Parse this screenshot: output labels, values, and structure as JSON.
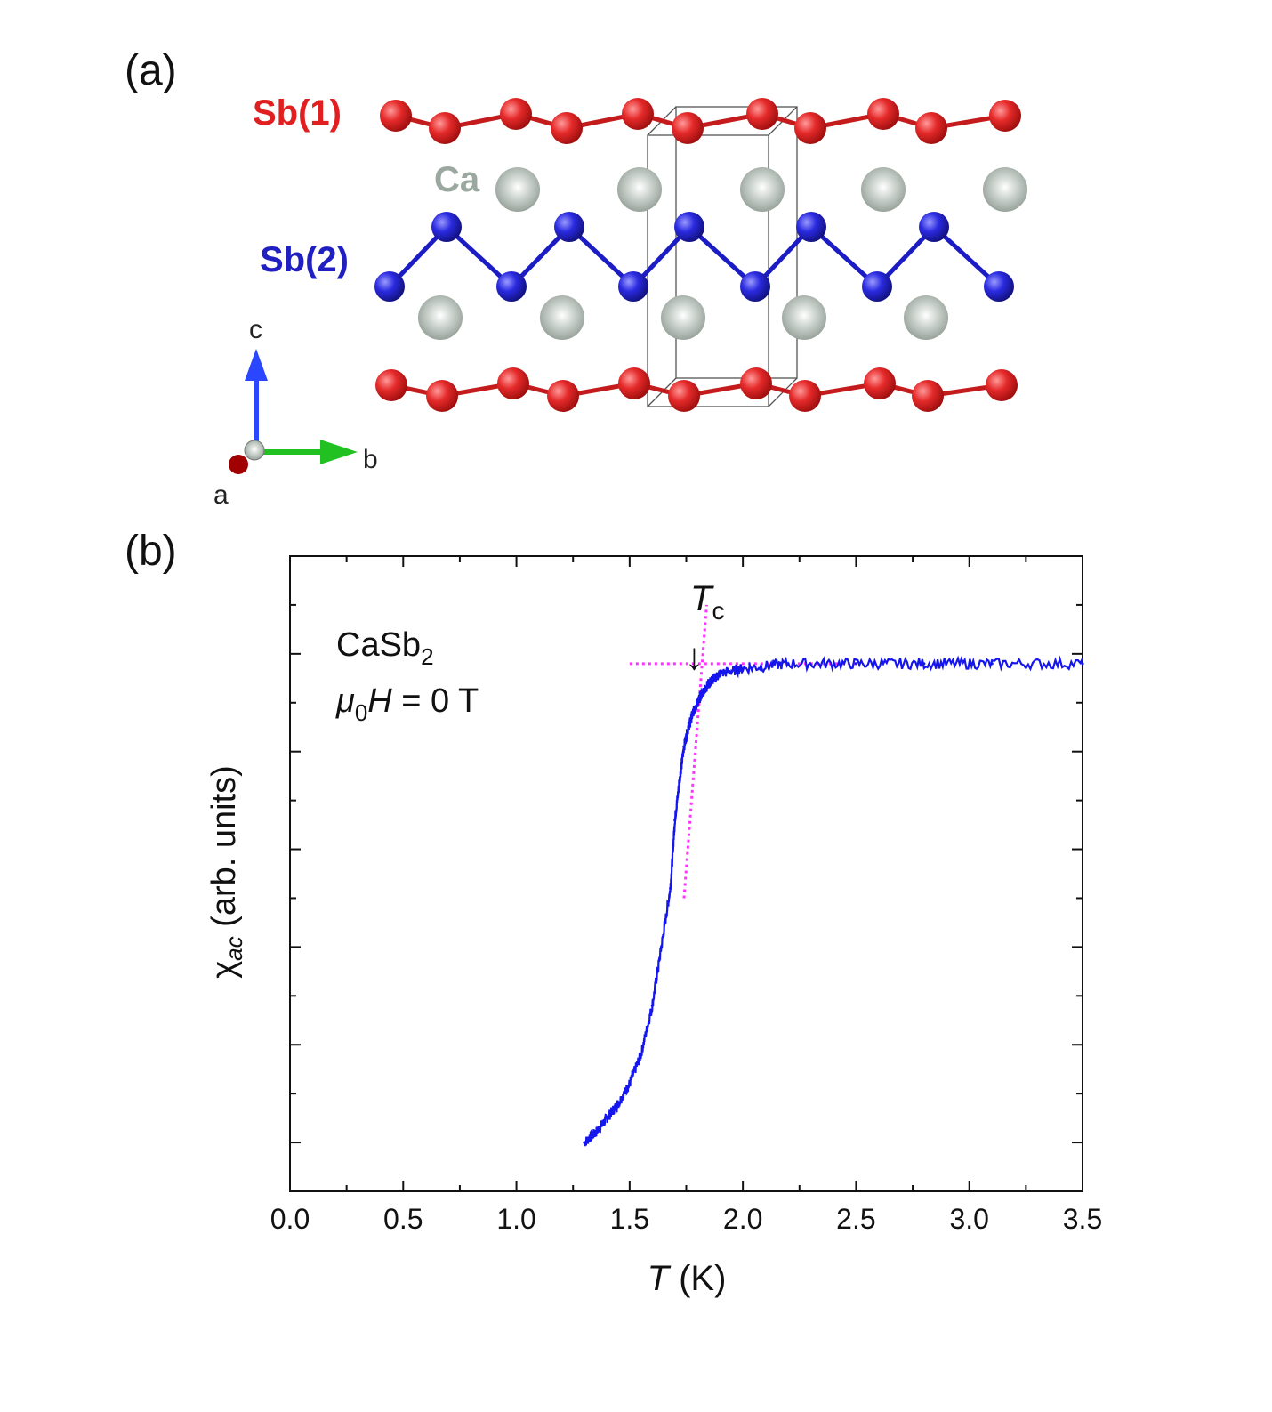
{
  "panel_a": {
    "label": "(a)",
    "atoms": {
      "sb1": {
        "label": "Sb(1)",
        "color": "#e02020"
      },
      "ca": {
        "label": "Ca",
        "color": "#9aa89f"
      },
      "sb2": {
        "label": "Sb(2)",
        "color": "#2020c0"
      }
    },
    "axes": {
      "c": "c",
      "b": "b",
      "a": "a"
    }
  },
  "panel_b": {
    "label": "(b)",
    "annotation": {
      "compound": "CaSb",
      "compound_sub": "2",
      "field_mu": "μ",
      "field_sub": "0",
      "field_rest": "H = 0 T"
    },
    "tc_label": {
      "T": "T",
      "sub": "c"
    },
    "arrow": "↓",
    "xlabel_italic": "T",
    "xlabel_rest": " (K)",
    "ylabel_chi": "χ",
    "ylabel_sub": "ac",
    "ylabel_rest": " (arb. units)"
  },
  "chart_data": {
    "type": "line",
    "title": "",
    "xlabel": "T (K)",
    "ylabel": "χac (arb. units)",
    "xlim": [
      0.0,
      3.5
    ],
    "ylim": [
      0.0,
      1.3
    ],
    "x_ticks": [
      "0.0",
      "0.5",
      "1.0",
      "1.5",
      "2.0",
      "2.5",
      "3.0",
      "3.5"
    ],
    "x_tick_values": [
      0.0,
      0.5,
      1.0,
      1.5,
      2.0,
      2.5,
      3.0,
      3.5
    ],
    "y_tick_count": 6,
    "series": [
      {
        "name": "CaSb2 chi_ac",
        "color": "#1515ee",
        "x": [
          1.3,
          1.35,
          1.4,
          1.45,
          1.5,
          1.55,
          1.6,
          1.64,
          1.68,
          1.7,
          1.72,
          1.74,
          1.76,
          1.78,
          1.8,
          1.82,
          1.85,
          1.9,
          2.0,
          2.2,
          2.5,
          2.8,
          3.1,
          3.5
        ],
        "y": [
          0.1,
          0.12,
          0.15,
          0.18,
          0.22,
          0.28,
          0.38,
          0.5,
          0.62,
          0.76,
          0.84,
          0.91,
          0.95,
          0.98,
          1.0,
          1.02,
          1.04,
          1.06,
          1.07,
          1.08,
          1.08,
          1.08,
          1.08,
          1.08
        ]
      }
    ],
    "guide_lines": {
      "color": "#ff33ff",
      "baseline": {
        "x": [
          1.5,
          2.5
        ],
        "y": [
          1.08,
          1.08
        ]
      },
      "slope": {
        "x": [
          1.74,
          1.84
        ],
        "y": [
          0.6,
          1.2
        ]
      }
    },
    "tc_marker": {
      "x": 1.8,
      "label": "Tc"
    }
  }
}
